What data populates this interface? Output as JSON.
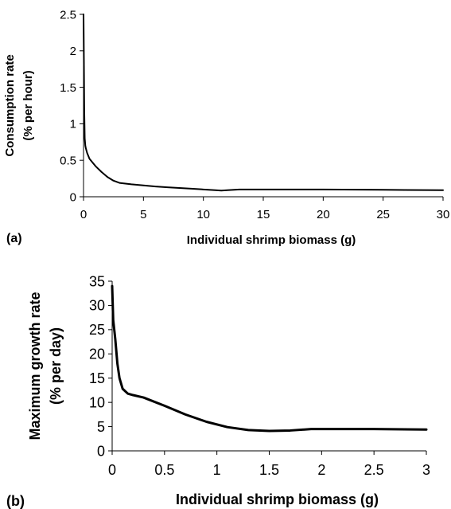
{
  "chart_data": [
    {
      "type": "line",
      "panel_label": "(a)",
      "xlabel": "Individual shrimp biomass (g)",
      "ylabel_lines": [
        "Consumption rate",
        "(% per hour)"
      ],
      "xlim": [
        0,
        30
      ],
      "ylim": [
        0,
        2.5
      ],
      "xticks": [
        "0",
        "5",
        "10",
        "15",
        "20",
        "25",
        "30"
      ],
      "xtick_values": [
        0,
        5,
        10,
        15,
        20,
        25,
        30
      ],
      "yticks": [
        "0",
        "0.5",
        "1",
        "1.5",
        "2",
        "2.5"
      ],
      "ytick_values": [
        0,
        0.5,
        1,
        1.5,
        2,
        2.5
      ],
      "grid": false,
      "series": [
        {
          "x": [
            0.0,
            0.03,
            0.06,
            0.1,
            0.15,
            0.2,
            0.3,
            0.5,
            1,
            1.5,
            2,
            2.5,
            3,
            4,
            5,
            6,
            7,
            8,
            9,
            10,
            11,
            11.5,
            12,
            13,
            15,
            20,
            25,
            30
          ],
          "y": [
            2.5,
            1.9,
            1.2,
            0.8,
            0.7,
            0.66,
            0.6,
            0.52,
            0.42,
            0.34,
            0.27,
            0.22,
            0.19,
            0.17,
            0.155,
            0.14,
            0.13,
            0.12,
            0.11,
            0.1,
            0.09,
            0.085,
            0.09,
            0.1,
            0.1,
            0.1,
            0.095,
            0.09
          ]
        }
      ]
    },
    {
      "type": "line",
      "panel_label": "(b)",
      "xlabel": "Individual shrimp biomass (g)",
      "ylabel_lines": [
        "Maximum growth rate",
        "(% per day)"
      ],
      "xlim": [
        0,
        3
      ],
      "ylim": [
        0,
        35
      ],
      "xticks": [
        "0",
        "0.5",
        "1",
        "1.5",
        "2",
        "2.5",
        "3"
      ],
      "xtick_values": [
        0,
        0.5,
        1,
        1.5,
        2,
        2.5,
        3
      ],
      "yticks": [
        "0",
        "5",
        "10",
        "15",
        "20",
        "25",
        "30",
        "35"
      ],
      "ytick_values": [
        0,
        5,
        10,
        15,
        20,
        25,
        30,
        35
      ],
      "grid": false,
      "series": [
        {
          "x": [
            0.0,
            0.01,
            0.03,
            0.05,
            0.07,
            0.1,
            0.15,
            0.2,
            0.3,
            0.5,
            0.7,
            0.9,
            1.1,
            1.3,
            1.5,
            1.7,
            1.9,
            2.1,
            2.5,
            3.0
          ],
          "y": [
            34,
            27,
            23,
            18,
            15,
            12.8,
            11.8,
            11.5,
            11,
            9.3,
            7.5,
            6,
            4.9,
            4.3,
            4.1,
            4.2,
            4.5,
            4.5,
            4.5,
            4.4
          ]
        }
      ]
    }
  ]
}
